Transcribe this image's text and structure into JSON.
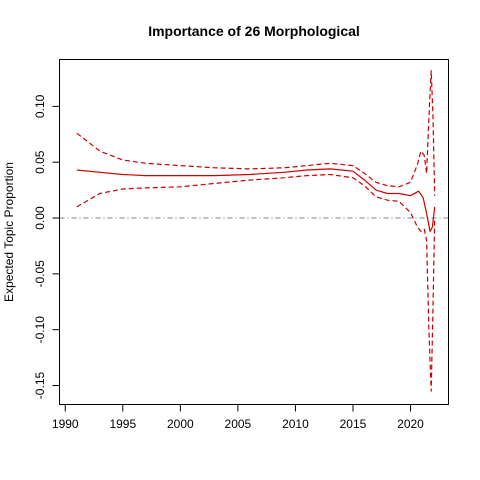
{
  "chart_data": {
    "type": "line",
    "title": "Importance of 26 Morphological",
    "xlabel": "",
    "ylabel": "Expected Topic Proportion",
    "xlim": [
      1989.5,
      2023.3
    ],
    "ylim": [
      -0.167,
      0.142
    ],
    "xticks": [
      1990,
      1995,
      2000,
      2005,
      2010,
      2015,
      2020
    ],
    "yticks": [
      -0.15,
      -0.1,
      -0.05,
      0.0,
      0.05,
      0.1
    ],
    "ytick_labels": [
      "-0.15",
      "-0.10",
      "-0.05",
      "0.00",
      "0.05",
      "0.10"
    ],
    "reference_line": {
      "y": 0,
      "style": "dot-dash",
      "color": "#808080"
    },
    "grid": false,
    "legend": "none",
    "series": [
      {
        "role": "estimate",
        "style": "solid",
        "color": "#cc0000",
        "x": [
          1991,
          1993,
          1995,
          1997,
          2000,
          2003,
          2006,
          2009,
          2011,
          2013,
          2015,
          2016,
          2017,
          2018,
          2019,
          2020,
          2020.7,
          2021.1,
          2021.4,
          2021.7,
          2021.9,
          2022.1
        ],
        "y": [
          0.043,
          0.041,
          0.039,
          0.038,
          0.038,
          0.038,
          0.039,
          0.041,
          0.043,
          0.044,
          0.042,
          0.034,
          0.025,
          0.022,
          0.022,
          0.02,
          0.024,
          0.018,
          0.004,
          -0.012,
          -0.008,
          0.01
        ]
      },
      {
        "role": "upper-bound",
        "style": "dashed",
        "color": "#cc0000",
        "x": [
          1991,
          1992,
          1993,
          1995,
          1997,
          2000,
          2003,
          2006,
          2009,
          2011,
          2013,
          2015,
          2016,
          2017,
          2018,
          2019,
          2020,
          2020.6,
          2020.9,
          2021.2,
          2021.4,
          2021.6,
          2021.8,
          2021.95,
          2022.1
        ],
        "y": [
          0.076,
          0.068,
          0.06,
          0.052,
          0.049,
          0.047,
          0.045,
          0.044,
          0.045,
          0.047,
          0.049,
          0.047,
          0.04,
          0.032,
          0.029,
          0.028,
          0.032,
          0.048,
          0.06,
          0.056,
          0.04,
          0.09,
          0.132,
          0.09,
          0.02
        ]
      },
      {
        "role": "lower-bound",
        "style": "dashed",
        "color": "#cc0000",
        "x": [
          1991,
          1992,
          1993,
          1995,
          1997,
          2000,
          2003,
          2006,
          2009,
          2011,
          2013,
          2015,
          2016,
          2017,
          2018,
          2019,
          2020,
          2020.6,
          2020.9,
          2021.2,
          2021.4,
          2021.6,
          2021.8,
          2021.95,
          2022.1
        ],
        "y": [
          0.01,
          0.016,
          0.022,
          0.026,
          0.027,
          0.028,
          0.031,
          0.034,
          0.036,
          0.038,
          0.039,
          0.036,
          0.029,
          0.019,
          0.016,
          0.015,
          0.005,
          -0.008,
          -0.012,
          -0.01,
          -0.02,
          -0.1,
          -0.155,
          -0.08,
          0.0
        ]
      }
    ]
  }
}
